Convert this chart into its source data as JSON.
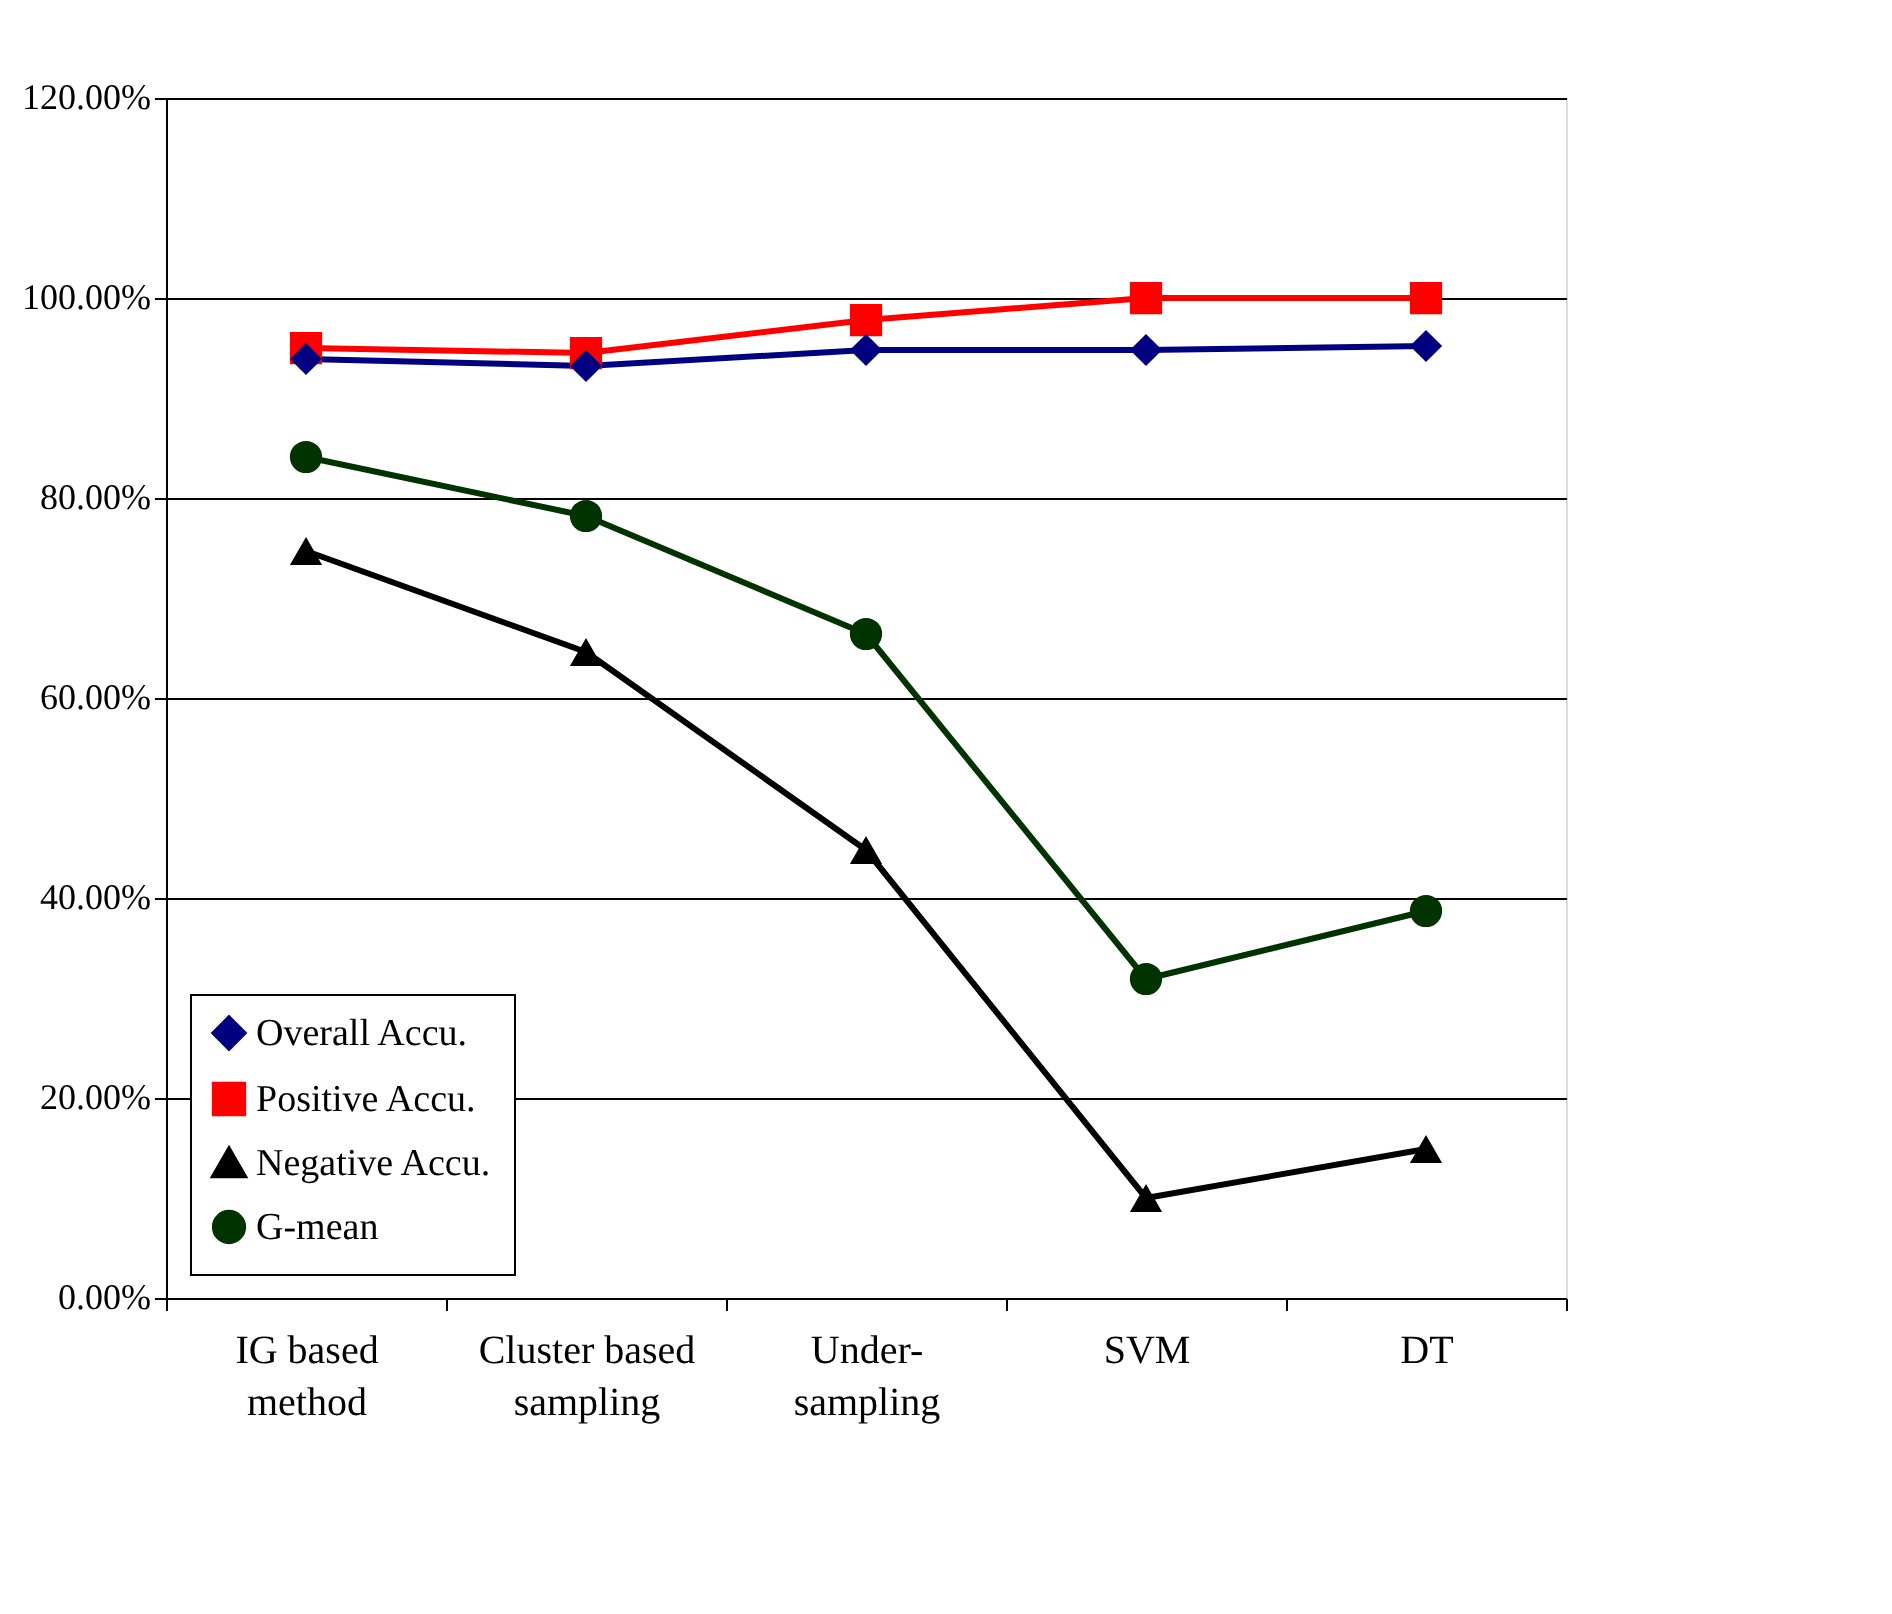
{
  "chart_data": {
    "type": "line",
    "categories": [
      "IG based method",
      "Cluster based sampling",
      "Under-sampling",
      "SVM",
      "DT"
    ],
    "ylim": [
      0,
      120
    ],
    "yticks": [
      {
        "value": 0,
        "label": "0.00%"
      },
      {
        "value": 20,
        "label": "20.00%"
      },
      {
        "value": 40,
        "label": "40.00%"
      },
      {
        "value": 60,
        "label": "60.00%"
      },
      {
        "value": 80,
        "label": "80.00%"
      },
      {
        "value": 100,
        "label": "100.00%"
      },
      {
        "value": 120,
        "label": "120.00%"
      }
    ],
    "grid": "y",
    "legend": "bottom left",
    "line_style": "solid",
    "series": [
      {
        "name": "Overall Accu.",
        "color": "#000080",
        "marker": "diamond",
        "values": [
          93.9,
          93.2,
          94.8,
          94.8,
          95.2
        ]
      },
      {
        "name": "Positive Accu.",
        "color": "#ff0000",
        "marker": "square",
        "values": [
          95.0,
          94.5,
          97.8,
          100,
          100
        ]
      },
      {
        "name": "Negative Accu.",
        "color": "#000000",
        "marker": "triangle",
        "values": [
          74.7,
          64.6,
          44.8,
          10.0,
          14.9
        ]
      },
      {
        "name": "G-mean",
        "color": "#003300",
        "marker": "circle",
        "values": [
          84.1,
          78.2,
          66.4,
          31.9,
          38.7
        ]
      }
    ]
  }
}
